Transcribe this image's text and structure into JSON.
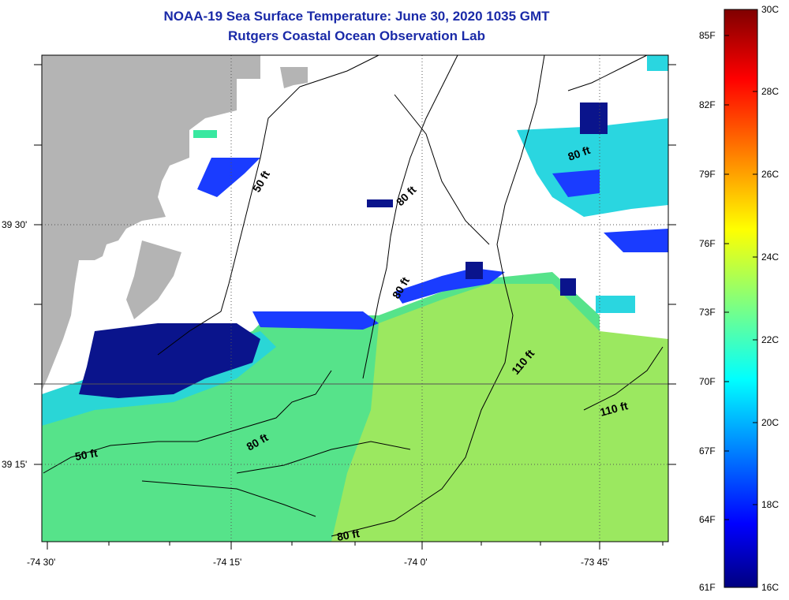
{
  "title": {
    "line1": "NOAA-19 Sea Surface Temperature:  June 30, 2020 1035 GMT",
    "line2": "Rutgers Coastal Ocean Observation Lab"
  },
  "map": {
    "lat_labels": [
      "39 30'",
      "39 15'"
    ],
    "lon_labels": [
      "-74 30'",
      "-74 15'",
      "-74 0'",
      "-73 45'"
    ],
    "contour_labels": [
      "50 ft",
      "80 ft",
      "80 ft",
      "80 ft",
      "80 ft",
      "110 ft",
      "110 ft",
      "50 ft",
      "80 ft"
    ],
    "colors": {
      "land": "#b4b4b4",
      "cloud": "#ffffff",
      "coast": "#000000"
    }
  },
  "colorbar": {
    "fahrenheit_labels": [
      "85F",
      "82F",
      "79F",
      "76F",
      "73F",
      "70F",
      "67F",
      "64F",
      "61F"
    ],
    "celsius_labels": [
      "30C",
      "28C",
      "26C",
      "24C",
      "22C",
      "20C",
      "18C",
      "16C"
    ],
    "range_c": [
      16,
      30
    ]
  }
}
